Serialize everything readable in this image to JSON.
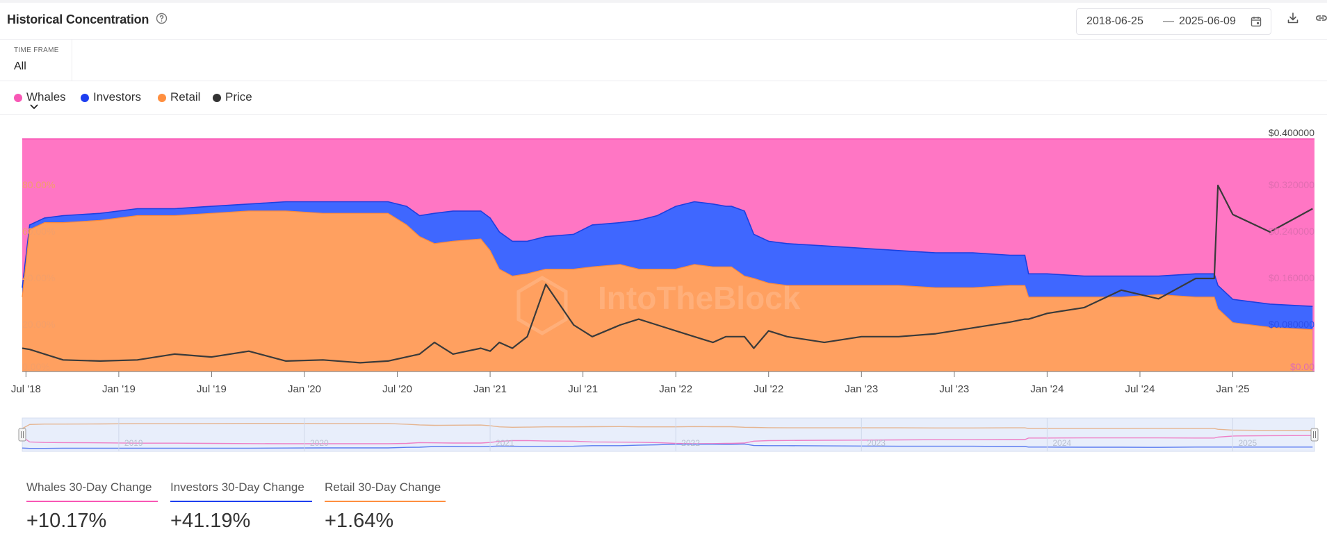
{
  "header": {
    "title": "Historical Concentration",
    "date_start": "2018-06-25",
    "date_separator": "—",
    "date_end": "2025-06-09"
  },
  "time_frame": {
    "label": "TIME FRAME",
    "value": "All"
  },
  "legend": [
    {
      "label": "Whales",
      "color": "#f857b5"
    },
    {
      "label": "Investors",
      "color": "#1e3ff0"
    },
    {
      "label": "Retail",
      "color": "#ff8f3f"
    },
    {
      "label": "Price",
      "color": "#333333"
    }
  ],
  "colors": {
    "whales_fill": "#ff76c4",
    "investors_fill": "#3f67ff",
    "investors_line": "#1c3fe0",
    "retail_fill": "#ffa060",
    "retail_line": "#ff8a3a",
    "price_line": "#3a3a3a",
    "navigator_bg": "#e8eefb"
  },
  "watermark": "IntoTheBlock",
  "chart_data": {
    "type": "area",
    "stacked": true,
    "y_left_ticks": [
      "0.00%",
      "20.00%",
      "40.00%",
      "60.00%",
      "80.00%"
    ],
    "y_left_range": [
      0,
      100
    ],
    "y_right_ticks": [
      "$0.00",
      "$0.080000",
      "$0.160000",
      "$0.240000",
      "$0.320000",
      "$0.400000"
    ],
    "y_right_range": [
      0,
      0.4
    ],
    "x_ticks": [
      "Jul '18",
      "Jan '19",
      "Jul '19",
      "Jan '20",
      "Jul '20",
      "Jan '21",
      "Jul '21",
      "Jan '22",
      "Jul '22",
      "Jan '23",
      "Jul '23",
      "Jan '24",
      "Jul '24",
      "Jan '25"
    ],
    "navigator_labels": [
      "2019",
      "2020",
      "2021",
      "2022",
      "2023",
      "2024",
      "2025"
    ],
    "x_range": [
      2018.48,
      2025.44
    ],
    "x": [
      2018.48,
      2018.52,
      2018.6,
      2018.7,
      2018.9,
      2019.1,
      2019.3,
      2019.5,
      2019.7,
      2019.9,
      2020.1,
      2020.3,
      2020.45,
      2020.55,
      2020.62,
      2020.7,
      2020.8,
      2020.95,
      2021.0,
      2021.05,
      2021.12,
      2021.2,
      2021.3,
      2021.45,
      2021.55,
      2021.7,
      2021.8,
      2021.9,
      2022.0,
      2022.1,
      2022.2,
      2022.27,
      2022.3,
      2022.37,
      2022.42,
      2022.5,
      2022.6,
      2022.8,
      2023.0,
      2023.2,
      2023.4,
      2023.6,
      2023.8,
      2023.88,
      2023.9,
      2024.0,
      2024.2,
      2024.4,
      2024.6,
      2024.8,
      2024.9,
      2024.92,
      2025.0,
      2025.2,
      2025.43
    ],
    "series": [
      {
        "name": "Whales",
        "values": [
          64,
          37,
          34,
          33,
          32,
          30,
          30,
          29,
          28,
          27,
          27,
          27,
          27,
          29,
          33,
          32,
          31,
          31,
          34,
          40,
          44,
          44,
          42,
          41,
          37,
          36,
          35,
          33,
          29,
          27,
          28,
          29,
          29,
          31,
          41,
          44,
          45,
          46,
          47,
          48,
          49,
          49,
          50,
          50,
          58,
          58,
          59,
          59,
          59,
          58,
          58,
          63,
          69,
          71,
          72
        ]
      },
      {
        "name": "Investors",
        "values": [
          4,
          2,
          2,
          3,
          3,
          3,
          3,
          3,
          3,
          4,
          5,
          5,
          5,
          8,
          9,
          13,
          13,
          12,
          14,
          16,
          15,
          14,
          14,
          15,
          18,
          18,
          21,
          23,
          27,
          27,
          27,
          26,
          26,
          28,
          19,
          18,
          18,
          17,
          16,
          15,
          15,
          15,
          13,
          13,
          10,
          10,
          9,
          9,
          8,
          10,
          10,
          10,
          10,
          10,
          10
        ]
      },
      {
        "name": "Retail",
        "values": [
          32,
          61,
          64,
          64,
          65,
          67,
          67,
          68,
          69,
          69,
          68,
          68,
          68,
          63,
          58,
          55,
          56,
          57,
          52,
          44,
          41,
          42,
          44,
          44,
          45,
          46,
          44,
          44,
          44,
          46,
          45,
          45,
          45,
          41,
          40,
          38,
          37,
          37,
          37,
          37,
          36,
          36,
          37,
          37,
          32,
          32,
          32,
          32,
          33,
          32,
          32,
          27,
          21,
          19,
          18
        ]
      },
      {
        "name": "Price",
        "values": [
          0.04,
          0.038,
          0.03,
          0.02,
          0.018,
          0.02,
          0.03,
          0.025,
          0.035,
          0.018,
          0.02,
          0.015,
          0.018,
          0.025,
          0.03,
          0.05,
          0.03,
          0.04,
          0.035,
          0.05,
          0.04,
          0.06,
          0.15,
          0.08,
          0.06,
          0.08,
          0.09,
          0.08,
          0.07,
          0.06,
          0.05,
          0.06,
          0.06,
          0.06,
          0.04,
          0.07,
          0.06,
          0.05,
          0.06,
          0.06,
          0.065,
          0.075,
          0.085,
          0.09,
          0.09,
          0.1,
          0.11,
          0.14,
          0.125,
          0.16,
          0.16,
          0.32,
          0.27,
          0.24,
          0.28
        ]
      }
    ]
  },
  "stats": [
    {
      "label": "Whales 30-Day Change",
      "value": "+10.17%",
      "color": "#f857b5"
    },
    {
      "label": "Investors 30-Day Change",
      "value": "+41.19%",
      "color": "#1e3ff0"
    },
    {
      "label": "Retail 30-Day Change",
      "value": "+1.64%",
      "color": "#ff8f3f"
    }
  ]
}
